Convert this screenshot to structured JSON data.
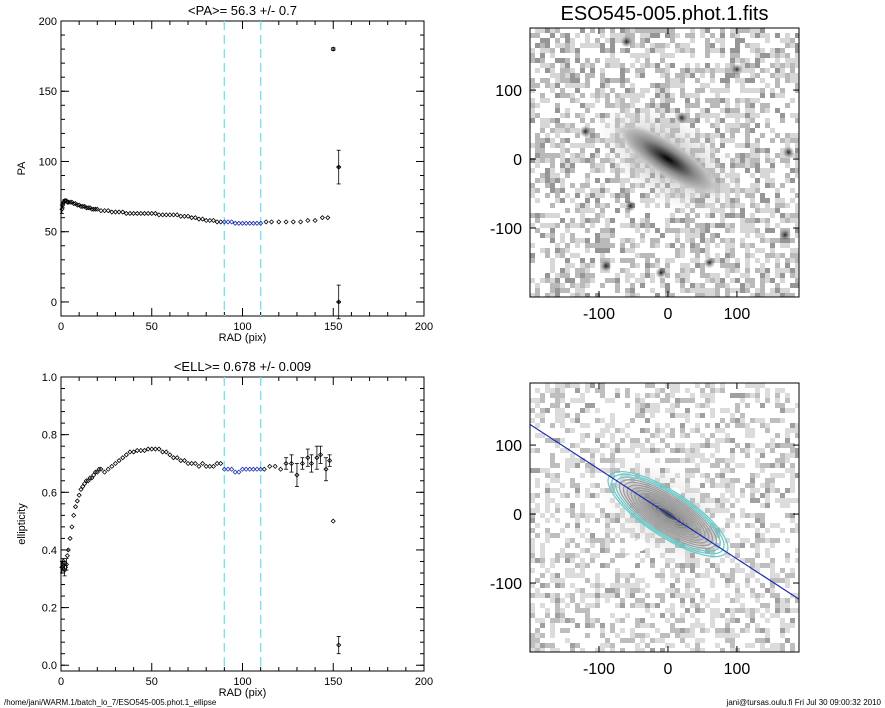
{
  "footer": {
    "left": "/home/jani/WARM.1/batch_lo_7/ESO545-005.phot.1_ellipse",
    "right": "jani@tursas.oulu.fi  Fri Jul 30 09:00:32 2010"
  },
  "chart_data": [
    {
      "type": "scatter",
      "title": "<PA>=  56.3 +/-   0.7",
      "xlabel": "RAD (pix)",
      "ylabel": "PA",
      "xlim": [
        0,
        200
      ],
      "ylim": [
        -10,
        200
      ],
      "xticks": [
        0,
        50,
        100,
        150,
        200
      ],
      "yticks": [
        0,
        50,
        100,
        150,
        200
      ],
      "range_lines_x": [
        90,
        110
      ],
      "series": [
        {
          "values": [
            [
              0.5,
              66
            ],
            [
              1,
              69
            ],
            [
              1.5,
              71
            ],
            [
              2,
              72
            ],
            [
              2.5,
              72
            ],
            [
              3,
              72
            ],
            [
              3.5,
              71
            ],
            [
              4,
              71
            ],
            [
              5,
              71
            ],
            [
              6,
              71
            ],
            [
              7,
              70
            ],
            [
              8,
              70
            ],
            [
              9,
              69
            ],
            [
              10,
              69
            ],
            [
              11,
              68
            ],
            [
              12,
              68
            ],
            [
              13,
              68
            ],
            [
              14,
              67
            ],
            [
              15,
              67
            ],
            [
              16,
              67
            ],
            [
              17,
              66
            ],
            [
              18,
              66
            ],
            [
              19,
              66
            ],
            [
              20,
              66
            ],
            [
              22,
              65
            ],
            [
              24,
              65
            ],
            [
              26,
              65
            ],
            [
              28,
              64
            ],
            [
              30,
              64
            ],
            [
              32,
              64
            ],
            [
              34,
              64
            ],
            [
              36,
              63
            ],
            [
              38,
              63
            ],
            [
              40,
              63
            ],
            [
              42,
              63
            ],
            [
              44,
              63
            ],
            [
              46,
              63
            ],
            [
              48,
              63
            ],
            [
              50,
              63
            ],
            [
              52,
              63
            ],
            [
              54,
              62
            ],
            [
              56,
              62
            ],
            [
              58,
              62
            ],
            [
              60,
              62
            ],
            [
              62,
              62
            ],
            [
              64,
              62
            ],
            [
              66,
              61
            ],
            [
              68,
              61
            ],
            [
              70,
              61
            ],
            [
              72,
              60
            ],
            [
              74,
              60
            ],
            [
              76,
              59
            ],
            [
              78,
              59
            ],
            [
              80,
              58
            ],
            [
              82,
              58
            ],
            [
              84,
              58
            ],
            [
              86,
              57
            ],
            [
              88,
              57
            ],
            [
              113,
              57
            ],
            [
              116,
              57
            ],
            [
              120,
              57
            ],
            [
              124,
              57
            ],
            [
              128,
              57
            ],
            [
              132,
              57
            ],
            [
              136,
              58
            ],
            [
              140,
              58
            ],
            [
              144,
              60
            ],
            [
              147,
              60
            ],
            [
              150,
              180
            ],
            [
              153,
              0
            ],
            [
              153,
              96
            ]
          ],
          "errors": [
            [
              0.5,
              3
            ],
            [
              1,
              2
            ],
            [
              2,
              1
            ],
            [
              150,
              1
            ],
            [
              153,
              0.5
            ],
            [
              153,
              12
            ]
          ]
        },
        {
          "values": [
            [
              90,
              57
            ],
            [
              92,
              57
            ],
            [
              94,
              57
            ],
            [
              96,
              56
            ],
            [
              98,
              56
            ],
            [
              100,
              56
            ],
            [
              102,
              56
            ],
            [
              104,
              56
            ],
            [
              106,
              56
            ],
            [
              108,
              56
            ],
            [
              110,
              56
            ]
          ]
        }
      ]
    },
    {
      "type": "scatter",
      "title": "<ELL>= 0.678 +/-  0.009",
      "xlabel": "RAD (pix)",
      "ylabel": "ellipticity",
      "xlim": [
        0,
        200
      ],
      "ylim": [
        -0.02,
        1.0
      ],
      "xticks": [
        0,
        50,
        100,
        150,
        200
      ],
      "yticks": [
        0.0,
        0.2,
        0.4,
        0.6,
        0.8,
        1.0
      ],
      "yticklabels": [
        "0.0",
        "0.2",
        "0.4",
        "0.6",
        "0.8",
        "1.0"
      ],
      "range_lines_x": [
        90,
        110
      ],
      "series": [
        {
          "values": [
            [
              0.5,
              0.34
            ],
            [
              1,
              0.35
            ],
            [
              1.5,
              0.36
            ],
            [
              2,
              0.33
            ],
            [
              2.5,
              0.34
            ],
            [
              3,
              0.35
            ],
            [
              3.5,
              0.38
            ],
            [
              4,
              0.4
            ],
            [
              5,
              0.44
            ],
            [
              6,
              0.48
            ],
            [
              7,
              0.52
            ],
            [
              8,
              0.55
            ],
            [
              9,
              0.57
            ],
            [
              10,
              0.59
            ],
            [
              11,
              0.61
            ],
            [
              12,
              0.62
            ],
            [
              13,
              0.63
            ],
            [
              14,
              0.64
            ],
            [
              15,
              0.64
            ],
            [
              16,
              0.65
            ],
            [
              17,
              0.65
            ],
            [
              18,
              0.66
            ],
            [
              19,
              0.67
            ],
            [
              20,
              0.67
            ],
            [
              21,
              0.68
            ],
            [
              22,
              0.68
            ],
            [
              24,
              0.67
            ],
            [
              26,
              0.68
            ],
            [
              28,
              0.69
            ],
            [
              30,
              0.7
            ],
            [
              32,
              0.71
            ],
            [
              34,
              0.72
            ],
            [
              36,
              0.73
            ],
            [
              38,
              0.74
            ],
            [
              40,
              0.74
            ],
            [
              42,
              0.745
            ],
            [
              44,
              0.745
            ],
            [
              46,
              0.745
            ],
            [
              48,
              0.75
            ],
            [
              50,
              0.75
            ],
            [
              52,
              0.75
            ],
            [
              54,
              0.75
            ],
            [
              56,
              0.74
            ],
            [
              58,
              0.74
            ],
            [
              60,
              0.73
            ],
            [
              62,
              0.72
            ],
            [
              64,
              0.72
            ],
            [
              66,
              0.71
            ],
            [
              68,
              0.71
            ],
            [
              70,
              0.7
            ],
            [
              72,
              0.7
            ],
            [
              74,
              0.7
            ],
            [
              76,
              0.69
            ],
            [
              78,
              0.7
            ],
            [
              80,
              0.69
            ],
            [
              82,
              0.69
            ],
            [
              84,
              0.69
            ],
            [
              86,
              0.7
            ],
            [
              88,
              0.7
            ],
            [
              112,
              0.68
            ],
            [
              115,
              0.69
            ],
            [
              118,
              0.69
            ],
            [
              121,
              0.68
            ],
            [
              124,
              0.7
            ],
            [
              127,
              0.7
            ],
            [
              130,
              0.66
            ],
            [
              133,
              0.7
            ],
            [
              136,
              0.72
            ],
            [
              138,
              0.7
            ],
            [
              141,
              0.72
            ],
            [
              143,
              0.73
            ],
            [
              146,
              0.68
            ],
            [
              148,
              0.71
            ],
            [
              150,
              0.5
            ],
            [
              153,
              0.07
            ]
          ],
          "errors": [
            [
              0.5,
              0.02
            ],
            [
              1,
              0.02
            ],
            [
              2,
              0.02
            ],
            [
              3,
              0.02
            ],
            [
              124,
              0.02
            ],
            [
              127,
              0.03
            ],
            [
              130,
              0.04
            ],
            [
              133,
              0.02
            ],
            [
              136,
              0.03
            ],
            [
              138,
              0.03
            ],
            [
              141,
              0.04
            ],
            [
              143,
              0.03
            ],
            [
              146,
              0.04
            ],
            [
              148,
              0.02
            ],
            [
              153,
              0.03
            ]
          ]
        },
        {
          "values": [
            [
              90,
              0.68
            ],
            [
              92,
              0.68
            ],
            [
              94,
              0.68
            ],
            [
              96,
              0.67
            ],
            [
              98,
              0.67
            ],
            [
              100,
              0.68
            ],
            [
              102,
              0.68
            ],
            [
              104,
              0.68
            ],
            [
              106,
              0.68
            ],
            [
              108,
              0.68
            ],
            [
              110,
              0.68
            ]
          ]
        }
      ]
    }
  ],
  "images": [
    {
      "title": "ESO545-005.phot.1.fits",
      "xticks": [
        -100,
        0,
        100
      ],
      "yticks": [
        100,
        0,
        -100
      ],
      "lim": [
        -200,
        190
      ]
    },
    {
      "title": "",
      "xticks": [
        -100,
        0,
        100
      ],
      "yticks": [
        100,
        0,
        -100
      ],
      "lim": [
        -200,
        190
      ]
    }
  ]
}
